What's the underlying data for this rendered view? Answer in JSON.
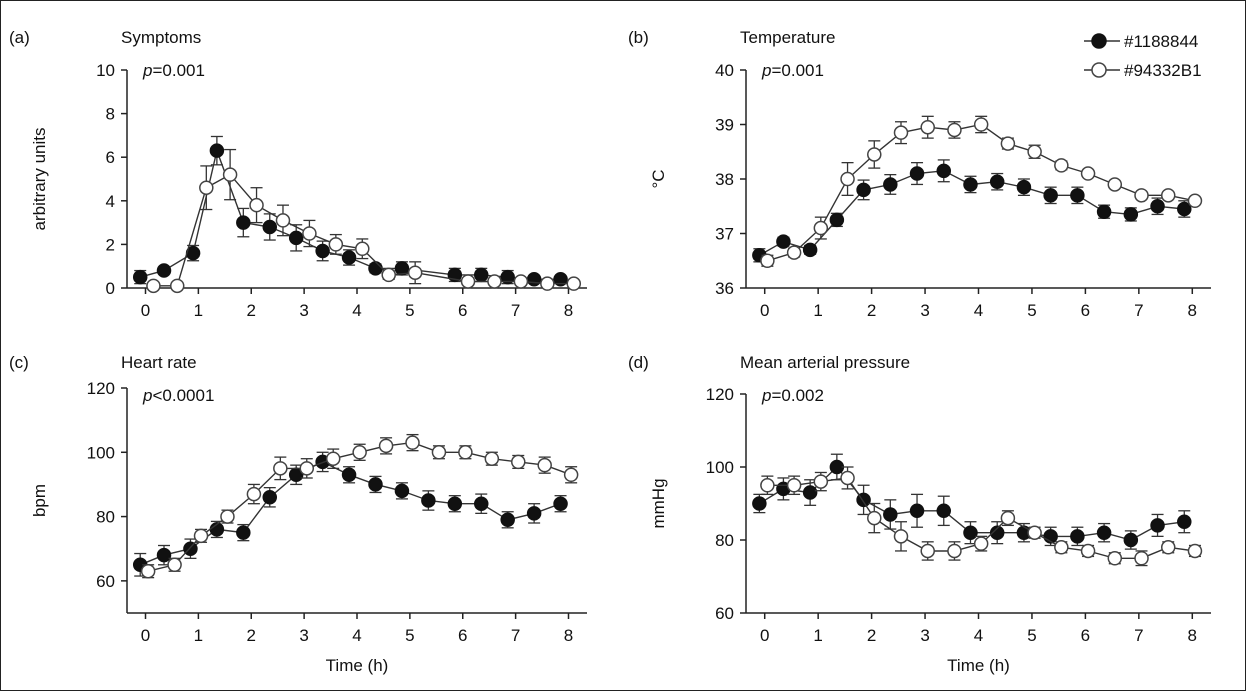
{
  "legend": {
    "position": "top-right of panel (b)",
    "items": [
      {
        "label": "#1188844",
        "marker": "filled-circle"
      },
      {
        "label": "#94332B1",
        "marker": "open-circle"
      }
    ]
  },
  "colors": {
    "line": "#333333",
    "filled_marker": "#111111",
    "open_marker_fill": "#ffffff",
    "frame": "#222222"
  },
  "chart_data": [
    {
      "type": "line",
      "panel_label": "(a)",
      "title": "Symptoms",
      "stat": {
        "p": "p",
        "text": "=0.001"
      },
      "xlabel": "",
      "ylabel": "arbitrary units",
      "xlim": [
        -0.35,
        8.35
      ],
      "ylim": [
        0,
        10
      ],
      "xticks": [
        0,
        1,
        2,
        3,
        4,
        5,
        6,
        7,
        8
      ],
      "yticks": [
        0,
        2,
        4,
        6,
        8,
        10
      ],
      "grid": false,
      "series": [
        {
          "name": "#1188844",
          "marker": "filled",
          "x": [
            -0.1,
            0.35,
            0.9,
            1.35,
            1.85,
            2.35,
            2.85,
            3.35,
            3.85,
            4.35,
            4.85,
            5.85,
            6.35,
            6.85,
            7.35,
            7.85
          ],
          "y": [
            0.5,
            0.8,
            1.6,
            6.3,
            3.0,
            2.8,
            2.3,
            1.7,
            1.4,
            0.9,
            0.9,
            0.6,
            0.6,
            0.5,
            0.4,
            0.4
          ],
          "err": [
            0.3,
            0.15,
            0.35,
            0.65,
            0.65,
            0.6,
            0.6,
            0.45,
            0.35,
            0.2,
            0.3,
            0.3,
            0.3,
            0.3,
            0.15,
            0.15
          ]
        },
        {
          "name": "#94332B1",
          "marker": "open",
          "x": [
            0.15,
            0.6,
            1.15,
            1.6,
            2.1,
            2.6,
            3.1,
            3.6,
            4.1,
            4.6,
            5.1,
            6.1,
            6.6,
            7.1,
            7.6,
            8.1
          ],
          "y": [
            0.1,
            0.1,
            4.6,
            5.2,
            3.8,
            3.1,
            2.5,
            2.0,
            1.8,
            0.6,
            0.7,
            0.3,
            0.3,
            0.3,
            0.2,
            0.2
          ],
          "err": [
            0.05,
            0.05,
            1.0,
            1.15,
            0.8,
            0.7,
            0.6,
            0.45,
            0.45,
            0.2,
            0.5,
            0.15,
            0.15,
            0.15,
            0.1,
            0.1
          ]
        }
      ]
    },
    {
      "type": "line",
      "panel_label": "(b)",
      "title": "Temperature",
      "stat": {
        "p": "p",
        "text": "=0.001"
      },
      "xlabel": "",
      "ylabel": "°C",
      "xlim": [
        -0.35,
        8.35
      ],
      "ylim": [
        36,
        40
      ],
      "xticks": [
        0,
        1,
        2,
        3,
        4,
        5,
        6,
        7,
        8
      ],
      "yticks": [
        36,
        37,
        38,
        39,
        40
      ],
      "grid": false,
      "series": [
        {
          "name": "#1188844",
          "marker": "filled",
          "x": [
            -0.1,
            0.35,
            0.85,
            1.35,
            1.85,
            2.35,
            2.85,
            3.35,
            3.85,
            4.35,
            4.85,
            5.35,
            5.85,
            6.35,
            6.85,
            7.35,
            7.85
          ],
          "y": [
            36.6,
            36.85,
            36.7,
            37.25,
            37.8,
            37.9,
            38.1,
            38.15,
            37.9,
            37.95,
            37.85,
            37.7,
            37.7,
            37.4,
            37.35,
            37.5,
            37.45
          ],
          "err": [
            0.12,
            0.08,
            0.08,
            0.12,
            0.18,
            0.18,
            0.2,
            0.2,
            0.15,
            0.15,
            0.15,
            0.15,
            0.15,
            0.12,
            0.12,
            0.15,
            0.15
          ]
        },
        {
          "name": "#94332B1",
          "marker": "open",
          "x": [
            0.05,
            0.55,
            1.05,
            1.55,
            2.05,
            2.55,
            3.05,
            3.55,
            4.05,
            4.55,
            5.05,
            5.55,
            6.05,
            6.55,
            7.05,
            7.55,
            8.05
          ],
          "y": [
            36.5,
            36.65,
            37.1,
            38.0,
            38.45,
            38.85,
            38.95,
            38.9,
            39.0,
            38.65,
            38.5,
            38.25,
            38.1,
            37.9,
            37.7,
            37.7,
            37.6
          ],
          "err": [
            0.1,
            0.08,
            0.2,
            0.3,
            0.25,
            0.2,
            0.2,
            0.15,
            0.15,
            0.1,
            0.12,
            0.08,
            0.05,
            0.05,
            0.05,
            0.05,
            0.05
          ]
        }
      ]
    },
    {
      "type": "line",
      "panel_label": "(c)",
      "title": "Heart rate",
      "stat": {
        "p": "p",
        "text": "<0.0001"
      },
      "xlabel": "Time (h)",
      "ylabel": "bpm",
      "xlim": [
        -0.35,
        8.35
      ],
      "ylim": [
        50,
        120
      ],
      "xticks": [
        0,
        1,
        2,
        3,
        4,
        5,
        6,
        7,
        8
      ],
      "yticks": [
        60,
        80,
        100,
        120
      ],
      "grid": false,
      "series": [
        {
          "name": "#1188844",
          "marker": "filled",
          "x": [
            -0.1,
            0.35,
            0.85,
            1.35,
            1.85,
            2.35,
            2.85,
            3.35,
            3.85,
            4.35,
            4.85,
            5.35,
            5.85,
            6.35,
            6.85,
            7.35,
            7.85
          ],
          "y": [
            65,
            68,
            70,
            76,
            75,
            86,
            93,
            97,
            93,
            90,
            88,
            85,
            84,
            84,
            79,
            81,
            84
          ],
          "err": [
            3.5,
            3,
            3,
            2.5,
            2.5,
            3,
            3,
            3,
            2.5,
            2.5,
            2.5,
            3,
            2.5,
            3,
            2.5,
            3,
            2.5
          ]
        },
        {
          "name": "#94332B1",
          "marker": "open",
          "x": [
            0.05,
            0.55,
            1.05,
            1.55,
            2.05,
            2.55,
            3.05,
            3.55,
            4.05,
            4.55,
            5.05,
            5.55,
            6.05,
            6.55,
            7.05,
            7.55,
            8.05
          ],
          "y": [
            63,
            65,
            74,
            80,
            87,
            95,
            95,
            98,
            100,
            102,
            103,
            100,
            100,
            98,
            97,
            96,
            93
          ],
          "err": [
            2,
            2,
            2,
            2,
            3,
            3.5,
            3,
            3,
            2.5,
            2.5,
            2.5,
            2,
            2,
            2,
            2,
            2.5,
            2.5
          ]
        }
      ]
    },
    {
      "type": "line",
      "panel_label": "(d)",
      "title": "Mean arterial pressure",
      "stat": {
        "p": "p",
        "text": "=0.002"
      },
      "xlabel": "Time (h)",
      "ylabel": "mmHg",
      "xlim": [
        -0.35,
        8.35
      ],
      "ylim": [
        60,
        120
      ],
      "xticks": [
        0,
        1,
        2,
        3,
        4,
        5,
        6,
        7,
        8
      ],
      "yticks": [
        60,
        80,
        100,
        120
      ],
      "grid": false,
      "series": [
        {
          "name": "#1188844",
          "marker": "filled",
          "x": [
            -0.1,
            0.35,
            0.85,
            1.35,
            1.85,
            2.35,
            2.85,
            3.35,
            3.85,
            4.35,
            4.85,
            5.35,
            5.85,
            6.35,
            6.85,
            7.35,
            7.85
          ],
          "y": [
            90,
            94,
            93,
            100,
            91,
            87,
            88,
            88,
            82,
            82,
            82,
            81,
            81,
            82,
            80,
            84,
            85
          ],
          "err": [
            2.5,
            3,
            3.5,
            3.5,
            4,
            4,
            4.5,
            4,
            3,
            3,
            2.5,
            2.5,
            2.5,
            2.5,
            2.5,
            3,
            3
          ]
        },
        {
          "name": "#94332B1",
          "marker": "open",
          "x": [
            0.05,
            0.55,
            1.05,
            1.55,
            2.05,
            2.55,
            3.05,
            3.55,
            4.05,
            4.55,
            5.05,
            5.55,
            6.05,
            6.55,
            7.05,
            7.55,
            8.05
          ],
          "y": [
            95,
            95,
            96,
            97,
            86,
            81,
            77,
            77,
            79,
            86,
            82,
            78,
            77,
            75,
            75,
            78,
            77
          ],
          "err": [
            2.5,
            2.5,
            2.5,
            3,
            4,
            4,
            2.5,
            2.5,
            2,
            2,
            1.5,
            1.5,
            1.5,
            1.5,
            2,
            1.5,
            1.5
          ]
        }
      ]
    }
  ]
}
